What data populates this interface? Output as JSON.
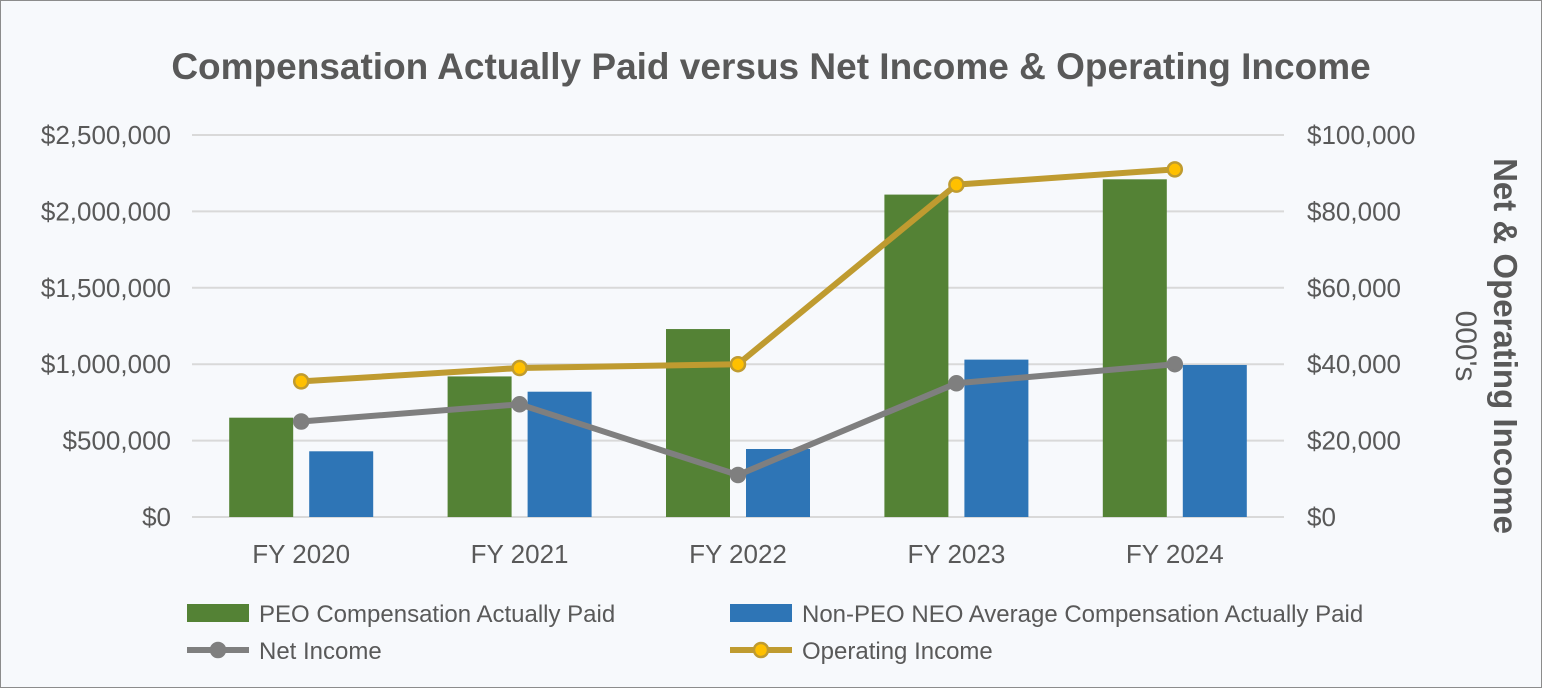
{
  "chart_data": {
    "type": "bar",
    "title": "Compensation Actually Paid versus Net Income & Operating Income",
    "categories": [
      "FY 2020",
      "FY 2021",
      "FY 2022",
      "FY 2023",
      "FY 2024"
    ],
    "series": [
      {
        "name": "PEO Compensation Actually Paid",
        "type": "bar",
        "axis": "left",
        "color": "#548235",
        "values": [
          650000,
          920000,
          1230000,
          2110000,
          2210000
        ]
      },
      {
        "name": "Non-PEO NEO Average Compensation Actually Paid",
        "type": "bar",
        "axis": "left",
        "color": "#2e75b6",
        "values": [
          430000,
          820000,
          445000,
          1030000,
          995000
        ]
      },
      {
        "name": "Net Income",
        "type": "line",
        "axis": "right",
        "color": "#7f7f7f",
        "marker_fill": "#7f7f7f",
        "values": [
          25000,
          29500,
          11000,
          35000,
          40000
        ]
      },
      {
        "name": "Operating Income",
        "type": "line",
        "axis": "right",
        "color": "#bf9b30",
        "marker_fill": "#ffc000",
        "values": [
          35500,
          39000,
          40000,
          87000,
          91000
        ]
      }
    ],
    "y_left": {
      "ylim": [
        0,
        2500000
      ],
      "ticks": [
        0,
        500000,
        1000000,
        1500000,
        2000000,
        2500000
      ],
      "tick_labels": [
        "$0",
        "$500,000",
        "$1,000,000",
        "$1,500,000",
        "$2,000,000",
        "$2,500,000"
      ]
    },
    "y_right": {
      "ylim": [
        0,
        100000
      ],
      "ticks": [
        0,
        20000,
        40000,
        60000,
        80000,
        100000
      ],
      "tick_labels": [
        "$0",
        "$20,000",
        "$40,000",
        "$60,000",
        "$80,000",
        "$100,000"
      ],
      "label": "Net & Operating Income",
      "unit_label": "000's"
    },
    "grid": true,
    "legend_position": "bottom"
  }
}
